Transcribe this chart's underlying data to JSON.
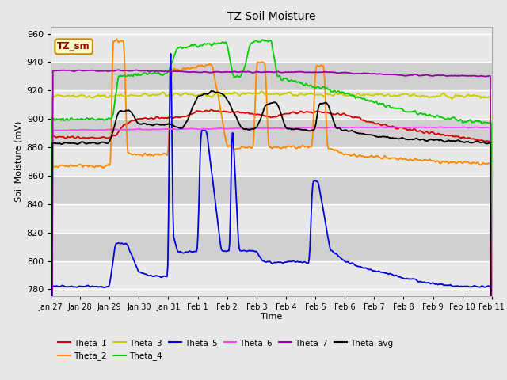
{
  "title": "TZ Soil Moisture",
  "xlabel": "Time",
  "ylabel": "Soil Moisture (mV)",
  "ylim": [
    775,
    965
  ],
  "xlim": [
    0,
    15
  ],
  "band_colors": [
    "#e8e8e8",
    "#d0d0d0"
  ],
  "grid_color": "white",
  "label_box_text": "TZ_sm",
  "label_box_bg": "#ffffcc",
  "label_box_border": "#cc8800",
  "series_colors": {
    "Theta_1": "#dd0000",
    "Theta_2": "#ff8800",
    "Theta_3": "#cccc00",
    "Theta_4": "#00cc00",
    "Theta_5": "#0000dd",
    "Theta_6": "#ff44ff",
    "Theta_7": "#9900aa",
    "Theta_avg": "#000000"
  },
  "x_tick_labels": [
    "Jan 27",
    "Jan 28",
    "Jan 29",
    "Jan 30",
    "Jan 31",
    "Feb 1",
    "Feb 2",
    "Feb 3",
    "Feb 4",
    "Feb 5",
    "Feb 6",
    "Feb 7",
    "Feb 8",
    "Feb 9",
    "Feb 10",
    "Feb 11"
  ],
  "yticks": [
    780,
    800,
    820,
    840,
    860,
    880,
    900,
    920,
    940,
    960
  ],
  "num_points": 600
}
